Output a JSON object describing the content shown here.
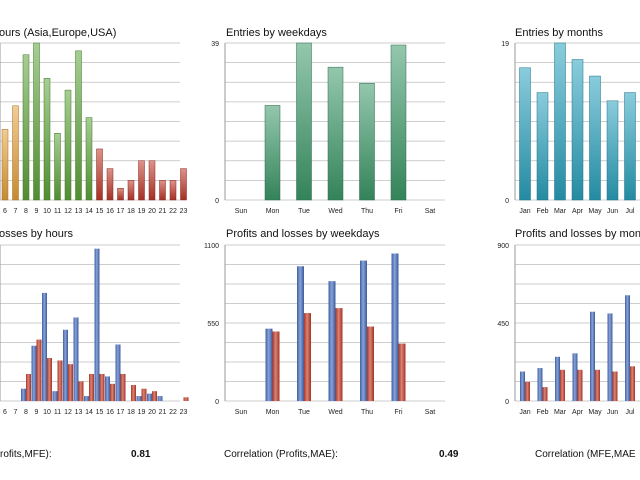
{
  "colors": {
    "orange": "#e8a33a",
    "green": "#5ea63a",
    "red_dark": "#c1392b",
    "teal_green": "#3d9a6a",
    "cyan": "#2aa3bf",
    "blue": "#4a70c2",
    "red": "#c8402c",
    "grid": "#bdbdbd"
  },
  "stats": [
    {
      "label": "rofits,MFE):",
      "value": "0.81"
    },
    {
      "label": "Correlation (Profits,MAE):",
      "value": "0.49"
    },
    {
      "label": "Correlation (MFE,MAE",
      "value": ""
    }
  ],
  "chart_data": [
    {
      "id": "entries_hours",
      "type": "bar",
      "title": "ours (Asia,Europe,USA)",
      "categories": [
        "6",
        "7",
        "8",
        "9",
        "10",
        "11",
        "12",
        "13",
        "14",
        "15",
        "16",
        "17",
        "18",
        "19",
        "20",
        "21",
        "22",
        "23"
      ],
      "values": [
        18,
        24,
        37,
        40,
        31,
        17,
        28,
        38,
        21,
        13,
        8,
        3,
        5,
        10,
        10,
        5,
        5,
        8
      ],
      "colors": [
        "orange",
        "orange",
        "green",
        "green",
        "green",
        "green",
        "green",
        "green",
        "green",
        "red_dark",
        "red_dark",
        "red_dark",
        "red_dark",
        "red_dark",
        "red_dark",
        "red_dark",
        "red_dark",
        "red_dark"
      ],
      "y_tick_labels": [],
      "ylim": [
        0,
        40
      ]
    },
    {
      "id": "entries_weekdays",
      "type": "bar",
      "title": "Entries by weekdays",
      "categories": [
        "Sun",
        "Mon",
        "Tue",
        "Wed",
        "Thu",
        "Fri",
        "Sat"
      ],
      "values": [
        0,
        23.5,
        39,
        33,
        29,
        38.5,
        0
      ],
      "color": "teal_green",
      "y_tick_labels": [
        "0",
        "39"
      ],
      "ylim": [
        0,
        39
      ]
    },
    {
      "id": "entries_months",
      "type": "bar",
      "title": "Entries by months",
      "categories": [
        "Jan",
        "Feb",
        "Mar",
        "Apr",
        "May",
        "Jun",
        "Jul"
      ],
      "values": [
        16,
        13,
        19,
        17,
        15,
        12,
        13
      ],
      "color": "cyan",
      "y_tick_labels": [
        "0",
        "19"
      ],
      "ylim": [
        0,
        19
      ]
    },
    {
      "id": "pl_hours",
      "type": "bar",
      "title": "osses by hours",
      "categories": [
        "6",
        "7",
        "8",
        "9",
        "10",
        "11",
        "12",
        "13",
        "14",
        "15",
        "16",
        "17",
        "18",
        "19",
        "20",
        "21",
        "22",
        "23"
      ],
      "series": [
        {
          "name": "profits",
          "color": "blue",
          "values": [
            0,
            0,
            10,
            45,
            88,
            8,
            58,
            68,
            4,
            124,
            20,
            46,
            0,
            4,
            6,
            4,
            0,
            0
          ]
        },
        {
          "name": "losses",
          "color": "red",
          "values": [
            0,
            0,
            22,
            50,
            35,
            33,
            30,
            16,
            22,
            22,
            14,
            22,
            13,
            10,
            8,
            0,
            0,
            3
          ]
        }
      ],
      "y_tick_labels": [],
      "ylim": [
        0,
        127
      ]
    },
    {
      "id": "pl_weekdays",
      "type": "bar",
      "title": "Profits and losses by weekdays",
      "categories": [
        "Sun",
        "Mon",
        "Tue",
        "Wed",
        "Thu",
        "Fri",
        "Sat"
      ],
      "series": [
        {
          "name": "profits",
          "color": "blue",
          "values": [
            0,
            510,
            950,
            845,
            990,
            1040,
            0
          ]
        },
        {
          "name": "losses",
          "color": "red",
          "values": [
            0,
            490,
            620,
            655,
            525,
            405,
            0
          ]
        }
      ],
      "y_tick_labels": [
        "0",
        "550",
        "1100"
      ],
      "ylim": [
        0,
        1100
      ]
    },
    {
      "id": "pl_months",
      "type": "bar",
      "title": "Profits and losses by mon",
      "categories": [
        "Jan",
        "Feb",
        "Mar",
        "Apr",
        "May",
        "Jun",
        "Jul"
      ],
      "series": [
        {
          "name": "profits",
          "color": "blue",
          "values": [
            170,
            190,
            255,
            275,
            515,
            505,
            610
          ]
        },
        {
          "name": "losses",
          "color": "red",
          "values": [
            110,
            80,
            180,
            180,
            180,
            170,
            200
          ]
        }
      ],
      "y_tick_labels": [
        "0",
        "450",
        "900"
      ],
      "ylim": [
        0,
        900
      ]
    }
  ]
}
